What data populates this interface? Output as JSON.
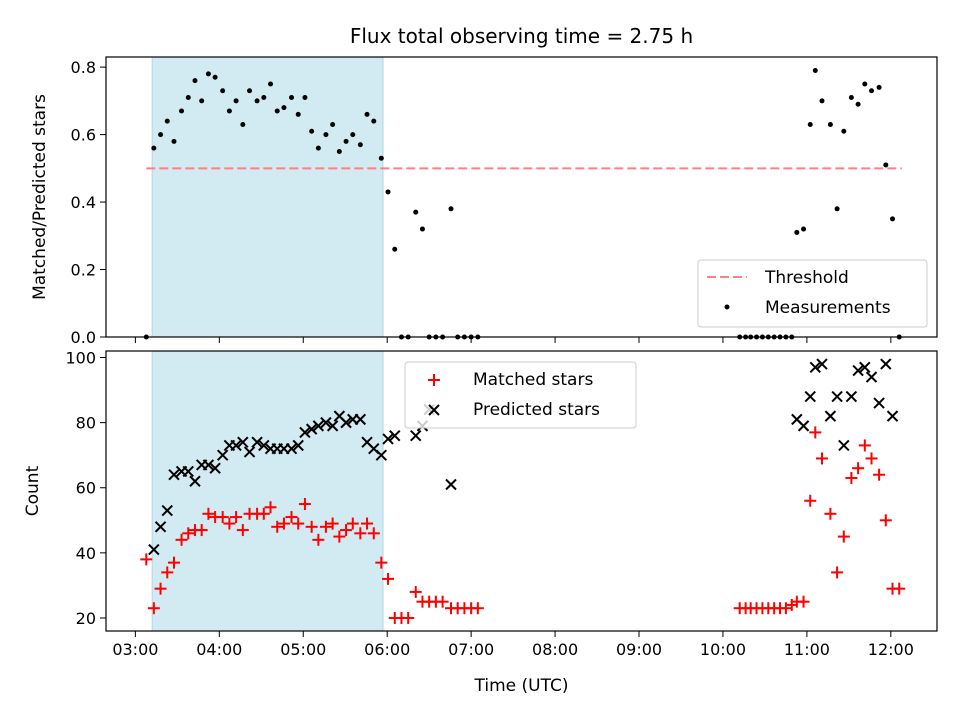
{
  "title": "Flux total observing time = 2.75 h",
  "x_axis": {
    "label": "Time (UTC)",
    "range_hours": [
      2.65,
      12.55
    ],
    "ticks": [
      {
        "v": 3,
        "label": "03:00"
      },
      {
        "v": 4,
        "label": "04:00"
      },
      {
        "v": 5,
        "label": "05:00"
      },
      {
        "v": 6,
        "label": "06:00"
      },
      {
        "v": 7,
        "label": "07:00"
      },
      {
        "v": 8,
        "label": "08:00"
      },
      {
        "v": 9,
        "label": "09:00"
      },
      {
        "v": 10,
        "label": "10:00"
      },
      {
        "v": 11,
        "label": "11:00"
      },
      {
        "v": 12,
        "label": "12:00"
      }
    ]
  },
  "colors": {
    "shade": "#add8e6",
    "threshold": "#ff8080",
    "measurements": "#000000",
    "matched": "#ff0000",
    "predicted": "#000000"
  },
  "chart_data": [
    {
      "type": "scatter",
      "panel": "top",
      "ylabel": "Matched/Predicted stars",
      "ylim": [
        0,
        0.83
      ],
      "yticks": [
        {
          "v": 0.0,
          "label": "0.0"
        },
        {
          "v": 0.2,
          "label": "0.2"
        },
        {
          "v": 0.4,
          "label": "0.4"
        },
        {
          "v": 0.6,
          "label": "0.6"
        },
        {
          "v": 0.8,
          "label": "0.8"
        }
      ],
      "shaded_region": [
        3.2,
        5.95
      ],
      "threshold": {
        "name": "Threshold",
        "value": 0.5,
        "x_range": [
          3.13,
          12.13
        ]
      },
      "legend": {
        "position": "lower right",
        "entries": [
          "Threshold",
          "Measurements"
        ]
      },
      "series": [
        {
          "name": "Measurements",
          "points": [
            [
              3.13,
              0.0
            ],
            [
              3.22,
              0.56
            ],
            [
              3.3,
              0.6
            ],
            [
              3.38,
              0.64
            ],
            [
              3.46,
              0.58
            ],
            [
              3.55,
              0.67
            ],
            [
              3.63,
              0.71
            ],
            [
              3.71,
              0.76
            ],
            [
              3.79,
              0.7
            ],
            [
              3.87,
              0.78
            ],
            [
              3.95,
              0.77
            ],
            [
              4.04,
              0.73
            ],
            [
              4.12,
              0.67
            ],
            [
              4.2,
              0.7
            ],
            [
              4.28,
              0.63
            ],
            [
              4.36,
              0.73
            ],
            [
              4.45,
              0.7
            ],
            [
              4.53,
              0.71
            ],
            [
              4.61,
              0.75
            ],
            [
              4.69,
              0.67
            ],
            [
              4.77,
              0.68
            ],
            [
              4.86,
              0.71
            ],
            [
              4.94,
              0.66
            ],
            [
              5.02,
              0.71
            ],
            [
              5.1,
              0.61
            ],
            [
              5.18,
              0.56
            ],
            [
              5.27,
              0.6
            ],
            [
              5.35,
              0.63
            ],
            [
              5.43,
              0.55
            ],
            [
              5.51,
              0.58
            ],
            [
              5.59,
              0.6
            ],
            [
              5.68,
              0.57
            ],
            [
              5.76,
              0.66
            ],
            [
              5.84,
              0.64
            ],
            [
              5.93,
              0.53
            ],
            [
              6.01,
              0.43
            ],
            [
              6.09,
              0.26
            ],
            [
              6.17,
              0.0
            ],
            [
              6.25,
              0.0
            ],
            [
              6.34,
              0.37
            ],
            [
              6.42,
              0.32
            ],
            [
              6.5,
              0.0
            ],
            [
              6.58,
              0.0
            ],
            [
              6.66,
              0.0
            ],
            [
              6.76,
              0.38
            ],
            [
              6.84,
              0.0
            ],
            [
              6.92,
              0.0
            ],
            [
              7.0,
              0.0
            ],
            [
              7.08,
              0.0
            ],
            [
              10.2,
              0.0
            ],
            [
              10.27,
              0.0
            ],
            [
              10.33,
              0.0
            ],
            [
              10.4,
              0.0
            ],
            [
              10.47,
              0.0
            ],
            [
              10.54,
              0.0
            ],
            [
              10.61,
              0.0
            ],
            [
              10.68,
              0.0
            ],
            [
              10.75,
              0.0
            ],
            [
              10.82,
              0.0
            ],
            [
              10.88,
              0.31
            ],
            [
              10.96,
              0.32
            ],
            [
              11.04,
              0.63
            ],
            [
              11.1,
              0.79
            ],
            [
              11.18,
              0.7
            ],
            [
              11.28,
              0.63
            ],
            [
              11.36,
              0.38
            ],
            [
              11.44,
              0.61
            ],
            [
              11.53,
              0.71
            ],
            [
              11.61,
              0.69
            ],
            [
              11.69,
              0.75
            ],
            [
              11.77,
              0.73
            ],
            [
              11.86,
              0.74
            ],
            [
              11.94,
              0.51
            ],
            [
              12.02,
              0.35
            ],
            [
              12.1,
              0.0
            ]
          ]
        }
      ]
    },
    {
      "type": "scatter",
      "panel": "bottom",
      "ylabel": "Count",
      "ylim": [
        16,
        102
      ],
      "yticks": [
        {
          "v": 20,
          "label": "20"
        },
        {
          "v": 40,
          "label": "40"
        },
        {
          "v": 60,
          "label": "60"
        },
        {
          "v": 80,
          "label": "80"
        },
        {
          "v": 100,
          "label": "100"
        }
      ],
      "shaded_region": [
        3.2,
        5.95
      ],
      "legend": {
        "position": "upper center",
        "entries": [
          "Matched stars",
          "Predicted stars"
        ]
      },
      "series": [
        {
          "name": "Matched stars",
          "marker": "plus",
          "points": [
            [
              3.13,
              38
            ],
            [
              3.22,
              23
            ],
            [
              3.3,
              29
            ],
            [
              3.38,
              34
            ],
            [
              3.46,
              37
            ],
            [
              3.55,
              44
            ],
            [
              3.63,
              46
            ],
            [
              3.71,
              47
            ],
            [
              3.79,
              47
            ],
            [
              3.87,
              52
            ],
            [
              3.95,
              51
            ],
            [
              4.04,
              51
            ],
            [
              4.12,
              49
            ],
            [
              4.2,
              51
            ],
            [
              4.28,
              47
            ],
            [
              4.36,
              52
            ],
            [
              4.45,
              52
            ],
            [
              4.53,
              52
            ],
            [
              4.61,
              54
            ],
            [
              4.69,
              48
            ],
            [
              4.77,
              49
            ],
            [
              4.86,
              51
            ],
            [
              4.94,
              49
            ],
            [
              5.02,
              55
            ],
            [
              5.1,
              48
            ],
            [
              5.18,
              44
            ],
            [
              5.27,
              48
            ],
            [
              5.35,
              49
            ],
            [
              5.43,
              45
            ],
            [
              5.51,
              47
            ],
            [
              5.59,
              49
            ],
            [
              5.68,
              46
            ],
            [
              5.76,
              49
            ],
            [
              5.84,
              46
            ],
            [
              5.93,
              37
            ],
            [
              6.01,
              32
            ],
            [
              6.09,
              20
            ],
            [
              6.17,
              20
            ],
            [
              6.25,
              20
            ],
            [
              6.34,
              28
            ],
            [
              6.42,
              25
            ],
            [
              6.5,
              25
            ],
            [
              6.58,
              25
            ],
            [
              6.66,
              25
            ],
            [
              6.76,
              23
            ],
            [
              6.84,
              23
            ],
            [
              6.92,
              23
            ],
            [
              7.0,
              23
            ],
            [
              7.08,
              23
            ],
            [
              10.2,
              23
            ],
            [
              10.27,
              23
            ],
            [
              10.33,
              23
            ],
            [
              10.4,
              23
            ],
            [
              10.47,
              23
            ],
            [
              10.54,
              23
            ],
            [
              10.61,
              23
            ],
            [
              10.68,
              23
            ],
            [
              10.75,
              23
            ],
            [
              10.82,
              24
            ],
            [
              10.88,
              25
            ],
            [
              10.96,
              25
            ],
            [
              11.04,
              56
            ],
            [
              11.1,
              77
            ],
            [
              11.18,
              69
            ],
            [
              11.28,
              52
            ],
            [
              11.36,
              34
            ],
            [
              11.44,
              45
            ],
            [
              11.53,
              63
            ],
            [
              11.61,
              66
            ],
            [
              11.69,
              73
            ],
            [
              11.77,
              69
            ],
            [
              11.86,
              64
            ],
            [
              11.94,
              50
            ],
            [
              12.02,
              29
            ],
            [
              12.1,
              29
            ]
          ]
        },
        {
          "name": "Predicted stars",
          "marker": "x",
          "points": [
            [
              3.22,
              41
            ],
            [
              3.3,
              48
            ],
            [
              3.38,
              53
            ],
            [
              3.46,
              64
            ],
            [
              3.55,
              65
            ],
            [
              3.63,
              65
            ],
            [
              3.71,
              62
            ],
            [
              3.79,
              67
            ],
            [
              3.87,
              67
            ],
            [
              3.95,
              66
            ],
            [
              4.04,
              70
            ],
            [
              4.12,
              73
            ],
            [
              4.2,
              73
            ],
            [
              4.28,
              74
            ],
            [
              4.36,
              71
            ],
            [
              4.45,
              74
            ],
            [
              4.53,
              73
            ],
            [
              4.61,
              72
            ],
            [
              4.69,
              72
            ],
            [
              4.77,
              72
            ],
            [
              4.86,
              72
            ],
            [
              4.94,
              73
            ],
            [
              5.02,
              77
            ],
            [
              5.1,
              78
            ],
            [
              5.18,
              79
            ],
            [
              5.27,
              80
            ],
            [
              5.35,
              79
            ],
            [
              5.43,
              82
            ],
            [
              5.51,
              80
            ],
            [
              5.59,
              81
            ],
            [
              5.68,
              81
            ],
            [
              5.76,
              74
            ],
            [
              5.84,
              72
            ],
            [
              5.93,
              70
            ],
            [
              6.01,
              75
            ],
            [
              6.09,
              76
            ],
            [
              6.34,
              76
            ],
            [
              6.42,
              79
            ],
            [
              6.5,
              84
            ],
            [
              6.76,
              61
            ],
            [
              10.88,
              81
            ],
            [
              10.96,
              79
            ],
            [
              11.04,
              88
            ],
            [
              11.1,
              97
            ],
            [
              11.18,
              98
            ],
            [
              11.28,
              82
            ],
            [
              11.36,
              88
            ],
            [
              11.44,
              73
            ],
            [
              11.53,
              88
            ],
            [
              11.61,
              96
            ],
            [
              11.69,
              97
            ],
            [
              11.77,
              94
            ],
            [
              11.86,
              86
            ],
            [
              11.94,
              98
            ],
            [
              12.02,
              82
            ]
          ]
        }
      ]
    }
  ]
}
